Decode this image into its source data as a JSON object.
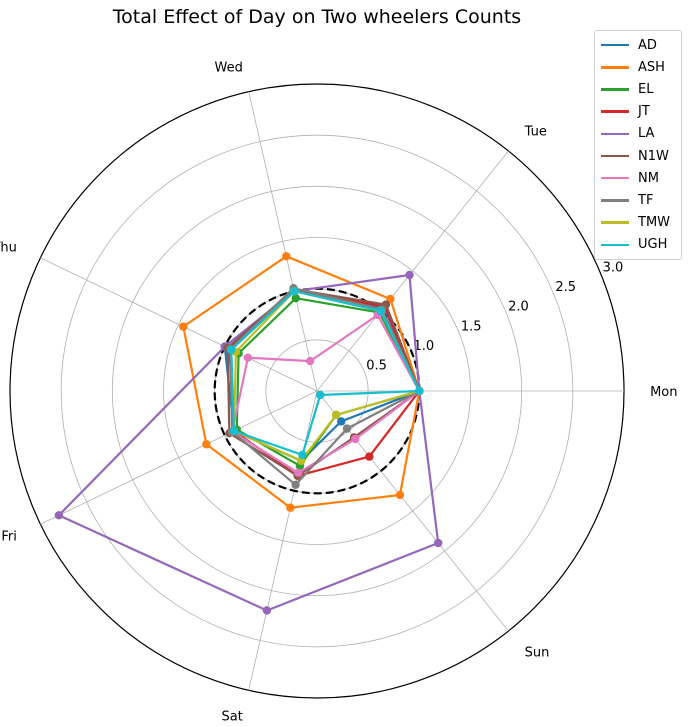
{
  "chart_data": {
    "type": "radar",
    "title": "Total Effect of Day on Two wheelers Counts",
    "categories": [
      "Mon",
      "Tue",
      "Wed",
      "Thu",
      "Fri",
      "Sat",
      "Sun"
    ],
    "radial_ticks": [
      "0.5",
      "1.0",
      "1.5",
      "2.0",
      "2.5",
      "3.0"
    ],
    "radial_tick_values": [
      0.5,
      1.0,
      1.5,
      2.0,
      2.5,
      3.0
    ],
    "rlim": [
      0,
      3.0
    ],
    "reference_circle": 1.0,
    "grid": true,
    "legend_position": "top-right",
    "series": [
      {
        "name": "AD",
        "color": "#1f77b4",
        "values": [
          1.0,
          1.05,
          1.0,
          1.0,
          0.9,
          0.7,
          0.38
        ]
      },
      {
        "name": "ASH",
        "color": "#ff7f0e",
        "values": [
          1.0,
          1.15,
          1.35,
          1.45,
          1.2,
          1.17,
          1.3
        ]
      },
      {
        "name": "EL",
        "color": "#2ca02c",
        "values": [
          1.0,
          0.98,
          0.93,
          0.85,
          0.87,
          0.75,
          0.3
        ]
      },
      {
        "name": "JT",
        "color": "#d62728",
        "values": [
          1.0,
          1.06,
          1.0,
          0.95,
          0.9,
          0.85,
          0.82
        ]
      },
      {
        "name": "LA",
        "color": "#9467bd",
        "values": [
          1.0,
          1.45,
          1.0,
          1.0,
          2.8,
          2.2,
          1.9
        ]
      },
      {
        "name": "N1W",
        "color": "#8c564b",
        "values": [
          1.0,
          1.08,
          1.02,
          0.97,
          0.95,
          0.85,
          0.58
        ]
      },
      {
        "name": "NM",
        "color": "#e377c2",
        "values": [
          1.0,
          0.95,
          0.3,
          0.75,
          0.92,
          0.82,
          0.6
        ]
      },
      {
        "name": "TF",
        "color": "#7f7f7f",
        "values": [
          1.0,
          1.02,
          1.03,
          0.94,
          0.92,
          0.94,
          0.47
        ]
      },
      {
        "name": "TMW",
        "color": "#bcbd22",
        "values": [
          1.0,
          1.0,
          1.0,
          0.88,
          0.9,
          0.7,
          0.3
        ]
      },
      {
        "name": "UGH",
        "color": "#17becf",
        "values": [
          1.0,
          1.0,
          1.0,
          0.93,
          0.9,
          0.64,
          0.05
        ]
      }
    ]
  }
}
